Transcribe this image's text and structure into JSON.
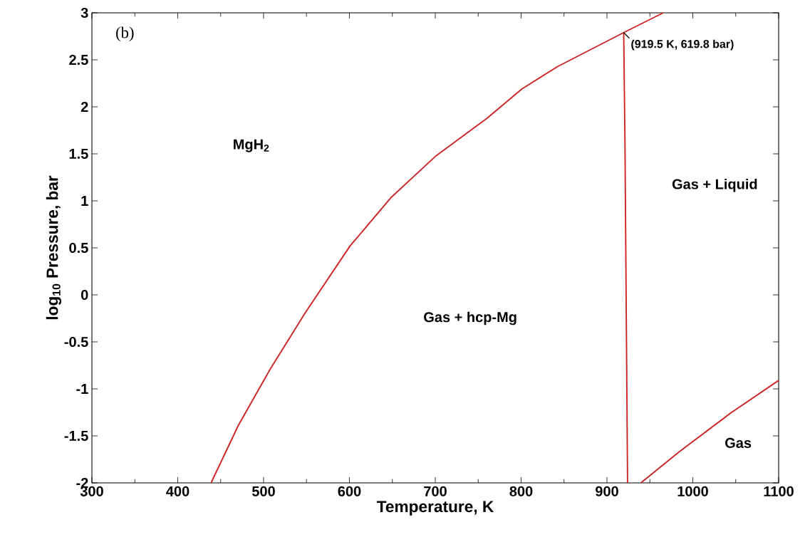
{
  "chart_data": {
    "type": "line",
    "xlabel": "Temperature, K",
    "ylabel": "log$_{10}$ Pressure, bar",
    "xlim": [
      300,
      1100
    ],
    "ylim": [
      -2,
      3
    ],
    "xticks": [
      300,
      400,
      500,
      600,
      700,
      800,
      900,
      1000,
      1100
    ],
    "yticks": [
      3,
      2.5,
      2,
      1.5,
      1,
      0.5,
      0,
      -0.5,
      -1,
      -1.5,
      -2
    ],
    "series": [
      {
        "color": "#cc2222",
        "x": [
          438.8,
          470.5,
          507.7,
          548.6,
          600.7,
          649,
          701,
          760.6,
          800.8,
          842.8,
          919.5,
          965.6
        ],
        "values": [
          -2,
          -1.39,
          -0.79,
          -0.19,
          0.52,
          1.04,
          1.48,
          1.88,
          2.19,
          2.43,
          2.79,
          3
        ]
      },
      {
        "color": "#cc2222",
        "x": [
          919.5,
          921,
          924
        ],
        "values": [
          2.79,
          1.6,
          -2
        ]
      },
      {
        "color": "#cc2222",
        "x": [
          939.5,
          984,
          1043.7,
          1100
        ],
        "values": [
          -2,
          -1.67,
          -1.26,
          -0.91
        ]
      }
    ],
    "annotations": [
      "(b)",
      "MgH$_{2}$",
      "Gas + hcp-Mg",
      "Gas + Liquid",
      "Gas",
      {
        "text": "(919.5 K, 619.8 bar)",
        "x": 919.5,
        "y": 2.79
      }
    ]
  }
}
